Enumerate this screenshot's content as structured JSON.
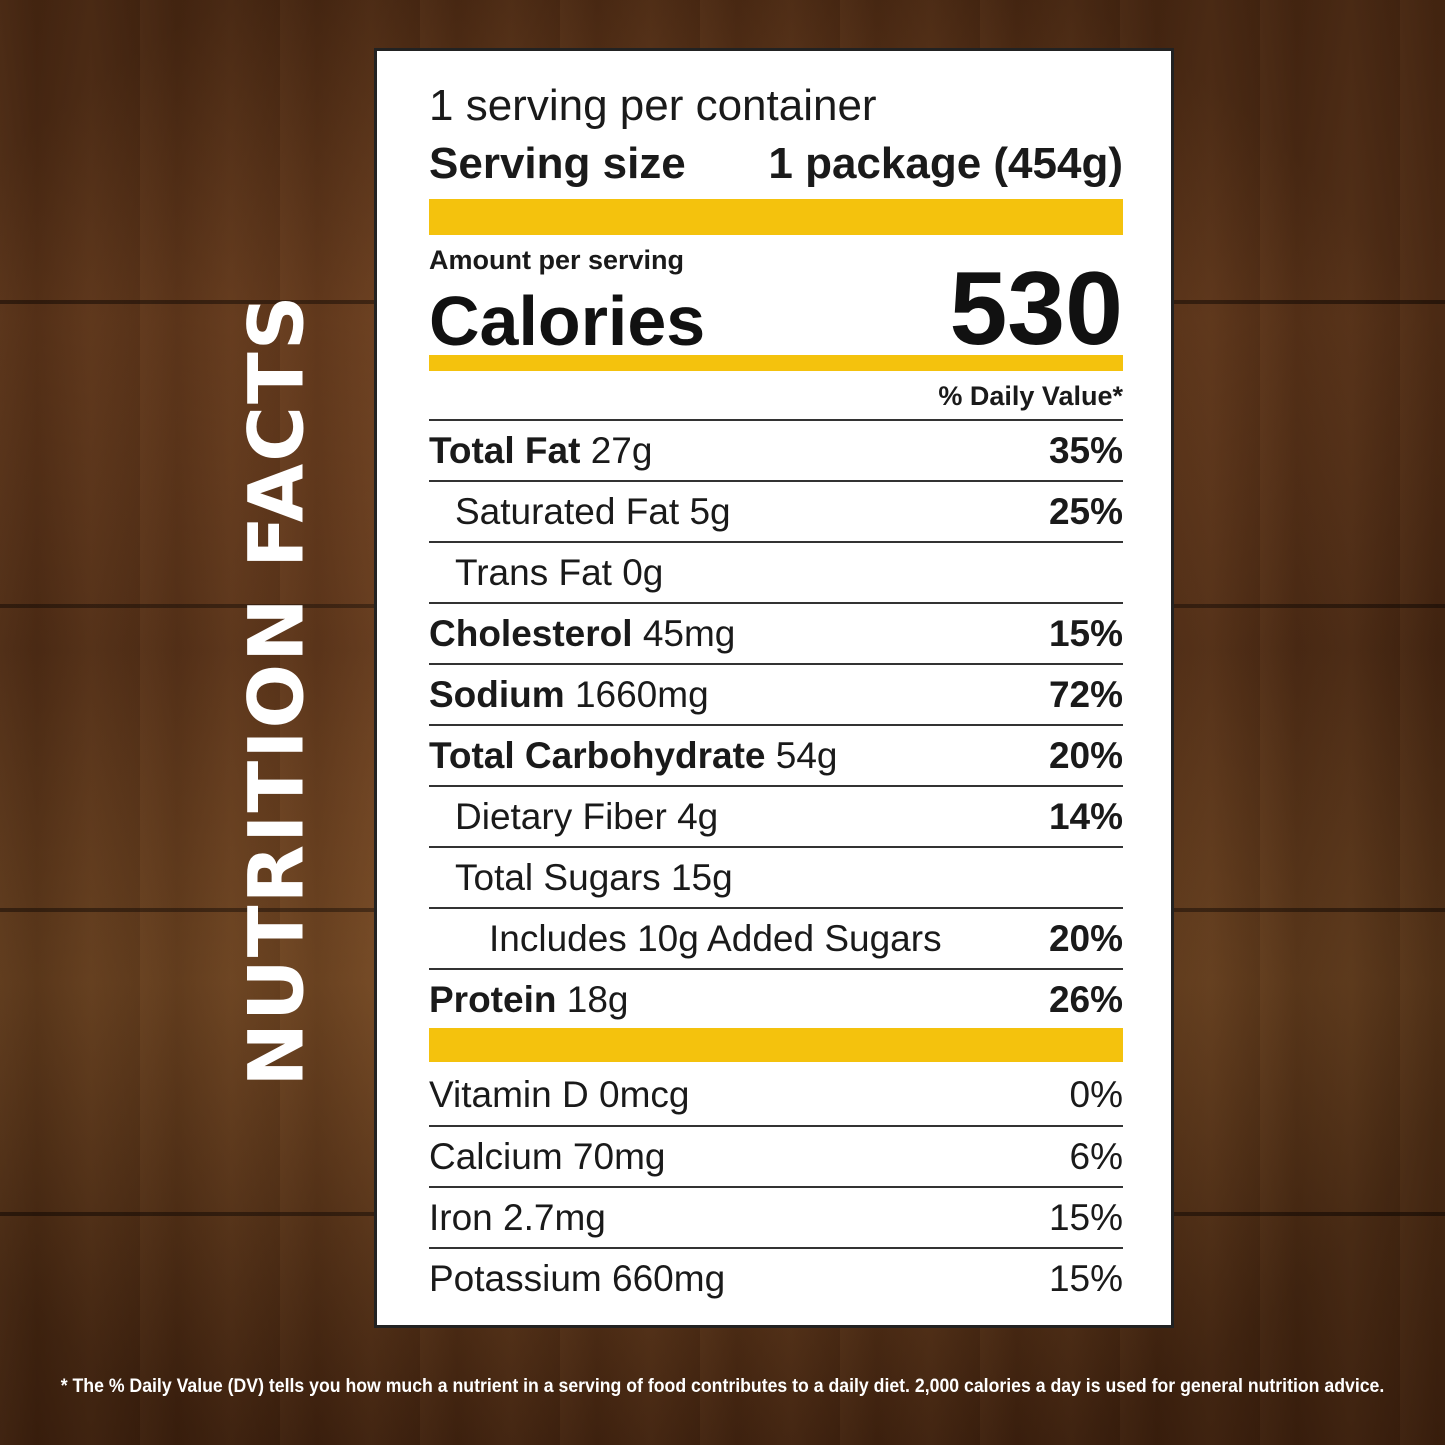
{
  "side_title": "NUTRITION FACTS",
  "servings_per_container": "1 serving per container",
  "serving_size_label": "Serving size",
  "serving_size_value": "1 package (454g)",
  "amount_per_serving": "Amount per serving",
  "calories_label": "Calories",
  "calories_value": "530",
  "daily_value_header": "% Daily Value*",
  "accent_color": "#f4c20d",
  "nutrients": [
    {
      "name": "Total Fat",
      "amount": "27g",
      "dv": "35%",
      "bold": true,
      "indent": 0
    },
    {
      "name": "Saturated Fat",
      "amount": "5g",
      "dv": "25%",
      "bold": false,
      "indent": 1
    },
    {
      "name": "Trans Fat",
      "amount": "0g",
      "dv": "",
      "bold": false,
      "indent": 1
    },
    {
      "name": "Cholesterol",
      "amount": "45mg",
      "dv": "15%",
      "bold": true,
      "indent": 0
    },
    {
      "name": "Sodium",
      "amount": "1660mg",
      "dv": "72%",
      "bold": true,
      "indent": 0
    },
    {
      "name": "Total Carbohydrate",
      "amount": "54g",
      "dv": "20%",
      "bold": true,
      "indent": 0
    },
    {
      "name": "Dietary Fiber",
      "amount": "4g",
      "dv": "14%",
      "bold": false,
      "indent": 1
    },
    {
      "name": "Total Sugars",
      "amount": "15g",
      "dv": "",
      "bold": false,
      "indent": 1
    },
    {
      "name": "Includes 10g Added Sugars",
      "amount": "",
      "dv": "20%",
      "bold": false,
      "indent": 2
    },
    {
      "name": "Protein",
      "amount": "18g",
      "dv": "26%",
      "bold": true,
      "indent": 0
    }
  ],
  "minerals": [
    {
      "name": "Vitamin D",
      "amount": "0mcg",
      "dv": "0%"
    },
    {
      "name": "Calcium",
      "amount": "70mg",
      "dv": "6%"
    },
    {
      "name": "Iron",
      "amount": "2.7mg",
      "dv": "15%"
    },
    {
      "name": "Potassium",
      "amount": "660mg",
      "dv": "15%"
    }
  ],
  "footnote": "* The % Daily Value (DV) tells you how much a nutrient in a serving of food contributes to a daily diet. 2,000 calories a day is used for general nutrition advice."
}
